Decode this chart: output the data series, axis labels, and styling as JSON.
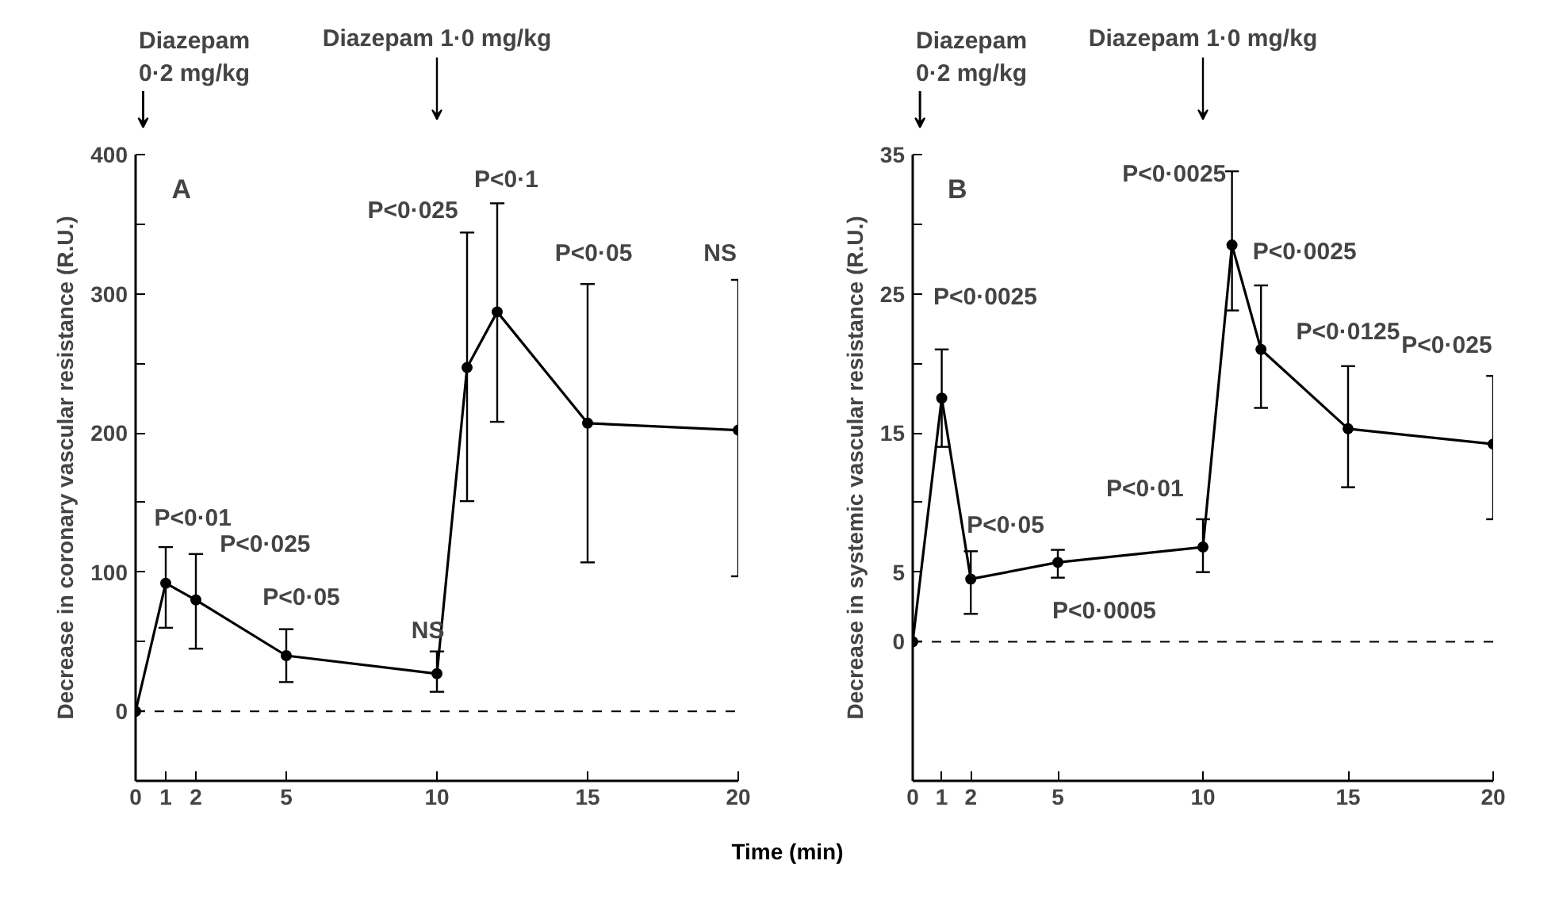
{
  "chart_data": [
    {
      "type": "line",
      "title": "A",
      "ylabel": "Decrease in coronary vascular resistance (R.U.)",
      "xlabel": "Time (min)",
      "x": [
        0,
        1,
        2,
        5,
        10,
        11,
        12,
        15,
        20
      ],
      "series": [
        {
          "color": "#000000",
          "values": [
            0,
            92,
            80,
            40,
            27,
            247,
            287,
            207,
            202
          ],
          "errors": [
            null,
            [
              60,
              118
            ],
            [
              45,
              113
            ],
            [
              21,
              59
            ],
            [
              14,
              43
            ],
            [
              151,
              344
            ],
            [
              208,
              365
            ],
            [
              107,
              307
            ],
            [
              97,
              310
            ]
          ]
        }
      ],
      "xlim": [
        0,
        20
      ],
      "xticks": [
        0,
        1,
        2,
        5,
        10,
        15,
        20
      ],
      "ylim": [
        -50,
        400
      ],
      "yticks": [
        0,
        {
          "value": 50,
          "label": null
        },
        100,
        {
          "value": 150,
          "label": null
        },
        200,
        {
          "value": 250,
          "label": null
        },
        300,
        {
          "value": 350,
          "label": null
        },
        400
      ],
      "marker": "circle",
      "line_style": "solid",
      "grid": false,
      "ref_lines": [
        {
          "axis": "y",
          "value": 0,
          "line_style": "dashed",
          "color": "#000000"
        }
      ],
      "annotations": [
        "Diazepam\n0·2 mg/kg",
        "Diazepam 1·0 mg/kg",
        "P<0·01",
        "P<0·025",
        "P<0·05",
        "NS",
        "P<0·025",
        "P<0·1",
        "P<0·05",
        "NS"
      ]
    },
    {
      "type": "line",
      "title": "B",
      "ylabel": "Decrease in systemic vascular resistance (R.U.)",
      "x": [
        0,
        1,
        2,
        5,
        10,
        11,
        12,
        15,
        20
      ],
      "series": [
        {
          "color": "#000000",
          "values": [
            0,
            17.5,
            4.5,
            5.7,
            6.8,
            28.5,
            21,
            15.3,
            14.2
          ],
          "errors": [
            null,
            [
              14,
              21
            ],
            [
              2,
              6.5
            ],
            [
              4.6,
              6.6
            ],
            [
              5,
              8.8
            ],
            [
              23.8,
              33.8
            ],
            [
              16.8,
              25.6
            ],
            [
              11.1,
              19.8
            ],
            [
              8.8,
              19.1
            ]
          ]
        }
      ],
      "xlim": [
        0,
        20
      ],
      "xticks": [
        0,
        1,
        2,
        5,
        10,
        15,
        20
      ],
      "ylim": [
        -10,
        35
      ],
      "yticks": [
        0,
        5,
        {
          "value": 10,
          "label": null
        },
        15,
        {
          "value": 20,
          "label": null
        },
        25,
        {
          "value": 30,
          "label": null
        },
        35
      ],
      "marker": "circle",
      "line_style": "solid",
      "grid": false,
      "ref_lines": [
        {
          "axis": "y",
          "value": 0,
          "line_style": "dashed",
          "color": "#000000"
        }
      ],
      "annotations": [
        "Diazepam\n0·2 mg/kg",
        "Diazepam 1·0 mg/kg",
        "P<0·0025",
        "P<0·05",
        "P<0·0005",
        "P<0·01",
        "P<0·0025",
        "P<0·0025",
        "P<0·0125",
        "P<0·025"
      ]
    }
  ]
}
